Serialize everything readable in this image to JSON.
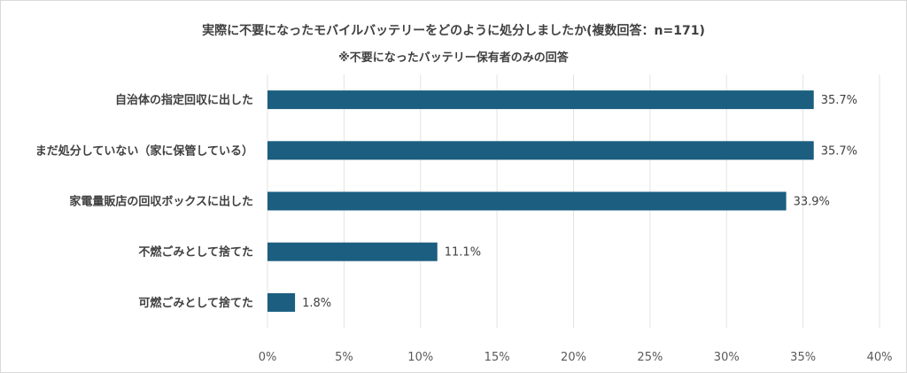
{
  "chart_data": {
    "type": "bar",
    "orientation": "horizontal",
    "title": "実際に不要になったモバイルバッテリーをどのように処分しましたか(複数回答：n=171)",
    "subtitle": "※不要になったバッテリー保有者のみの回答",
    "categories": [
      "自治体の指定回収に出した",
      "まだ処分していない（家に保管している）",
      "家電量販店の回収ボックスに出した",
      "不燃ごみとして捨てた",
      "可燃ごみとして捨てた"
    ],
    "values": [
      35.7,
      35.7,
      33.9,
      11.1,
      1.8
    ],
    "value_labels": [
      "35.7%",
      "35.7%",
      "33.9%",
      "11.1%",
      "1.8%"
    ],
    "xlim": [
      0,
      40
    ],
    "x_ticks": [
      0,
      5,
      10,
      15,
      20,
      25,
      30,
      35,
      40
    ],
    "x_tick_labels": [
      "0%",
      "5%",
      "10%",
      "15%",
      "20%",
      "25%",
      "30%",
      "35%",
      "40%"
    ],
    "grid": true,
    "legend": "none",
    "bar_color": "#1b5e80"
  }
}
